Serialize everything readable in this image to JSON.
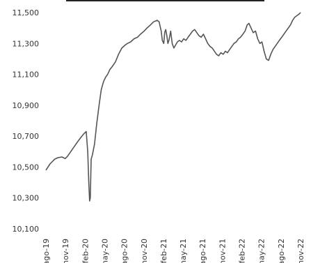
{
  "chart_data": {
    "type": "line",
    "title": "",
    "xlabel": "",
    "ylabel": "",
    "ylim": [
      10100,
      11500
    ],
    "yticks": [
      10100,
      10300,
      10500,
      10700,
      10900,
      11100,
      11300,
      11500
    ],
    "ytick_labels": [
      "10,100",
      "10,300",
      "10,500",
      "10,700",
      "10,900",
      "11,100",
      "11,300",
      "11,500"
    ],
    "xlim": [
      "2019-08-01",
      "2022-11-01"
    ],
    "xtick_labels": [
      "ago-19",
      "nov-19",
      "feb-20",
      "may-20",
      "ago-20",
      "nov-20",
      "feb-21",
      "may-21",
      "ago-21",
      "nov-21",
      "feb-22",
      "may-22",
      "ago-22",
      "nov-22"
    ],
    "grid": false,
    "legend": "none",
    "line_color": "#555555",
    "series": [
      {
        "x": [
          "2019-08-01",
          "2019-08-20",
          "2019-09-10",
          "2019-09-25",
          "2019-10-15",
          "2019-10-30",
          "2019-11-10",
          "2019-11-25",
          "2019-12-10",
          "2019-12-25",
          "2020-01-10",
          "2020-01-25",
          "2020-02-05",
          "2020-02-12",
          "2020-02-17",
          "2020-02-21",
          "2020-02-24",
          "2020-02-28",
          "2020-03-05",
          "2020-03-15",
          "2020-03-25",
          "2020-04-05",
          "2020-04-15",
          "2020-04-25",
          "2020-05-05",
          "2020-05-15",
          "2020-05-25",
          "2020-06-05",
          "2020-06-20",
          "2020-07-05",
          "2020-07-20",
          "2020-08-05",
          "2020-08-15",
          "2020-08-30",
          "2020-09-15",
          "2020-10-01",
          "2020-10-15",
          "2020-11-01",
          "2020-11-15",
          "2020-12-01",
          "2020-12-15",
          "2021-01-01",
          "2021-01-10",
          "2021-01-20",
          "2021-01-25",
          "2021-02-01",
          "2021-02-05",
          "2021-02-10",
          "2021-02-15",
          "2021-02-20",
          "2021-02-25",
          "2021-03-05",
          "2021-03-12",
          "2021-03-20",
          "2021-03-28",
          "2021-04-05",
          "2021-04-15",
          "2021-04-25",
          "2021-05-05",
          "2021-05-15",
          "2021-05-25",
          "2021-06-05",
          "2021-06-15",
          "2021-06-25",
          "2021-07-05",
          "2021-07-15",
          "2021-07-25",
          "2021-08-05",
          "2021-08-15",
          "2021-08-25",
          "2021-09-05",
          "2021-09-15",
          "2021-09-25",
          "2021-10-05",
          "2021-10-15",
          "2021-10-25",
          "2021-11-05",
          "2021-11-15",
          "2021-11-25",
          "2021-12-05",
          "2021-12-15",
          "2021-12-25",
          "2022-01-05",
          "2022-01-15",
          "2022-01-25",
          "2022-02-05",
          "2022-02-15",
          "2022-02-25",
          "2022-03-05",
          "2022-03-15",
          "2022-03-25",
          "2022-04-05",
          "2022-04-15",
          "2022-04-25",
          "2022-05-05",
          "2022-05-15",
          "2022-05-25",
          "2022-06-05",
          "2022-06-15",
          "2022-06-25",
          "2022-07-05",
          "2022-07-15",
          "2022-07-25",
          "2022-08-05",
          "2022-08-15",
          "2022-08-25",
          "2022-09-05",
          "2022-09-15",
          "2022-09-25",
          "2022-10-05",
          "2022-10-15",
          "2022-10-25",
          "2022-11-01"
        ],
        "y": [
          10480,
          10520,
          10550,
          10560,
          10565,
          10555,
          10570,
          10600,
          10630,
          10660,
          10690,
          10715,
          10730,
          10600,
          10400,
          10280,
          10300,
          10550,
          10580,
          10650,
          10780,
          10900,
          11000,
          11050,
          11080,
          11100,
          11130,
          11150,
          11180,
          11230,
          11270,
          11290,
          11300,
          11310,
          11330,
          11340,
          11360,
          11380,
          11400,
          11420,
          11440,
          11450,
          11440,
          11380,
          11320,
          11300,
          11370,
          11390,
          11350,
          11300,
          11320,
          11380,
          11300,
          11270,
          11290,
          11310,
          11320,
          11310,
          11330,
          11320,
          11340,
          11360,
          11380,
          11390,
          11370,
          11350,
          11340,
          11360,
          11330,
          11300,
          11280,
          11270,
          11250,
          11230,
          11220,
          11240,
          11230,
          11250,
          11240,
          11260,
          11280,
          11300,
          11310,
          11330,
          11340,
          11360,
          11380,
          11420,
          11430,
          11400,
          11370,
          11380,
          11330,
          11300,
          11310,
          11250,
          11200,
          11190,
          11230,
          11260,
          11280,
          11300,
          11320,
          11340,
          11360,
          11380,
          11400,
          11420,
          11450,
          11470,
          11480,
          11490,
          11500
        ]
      }
    ]
  }
}
